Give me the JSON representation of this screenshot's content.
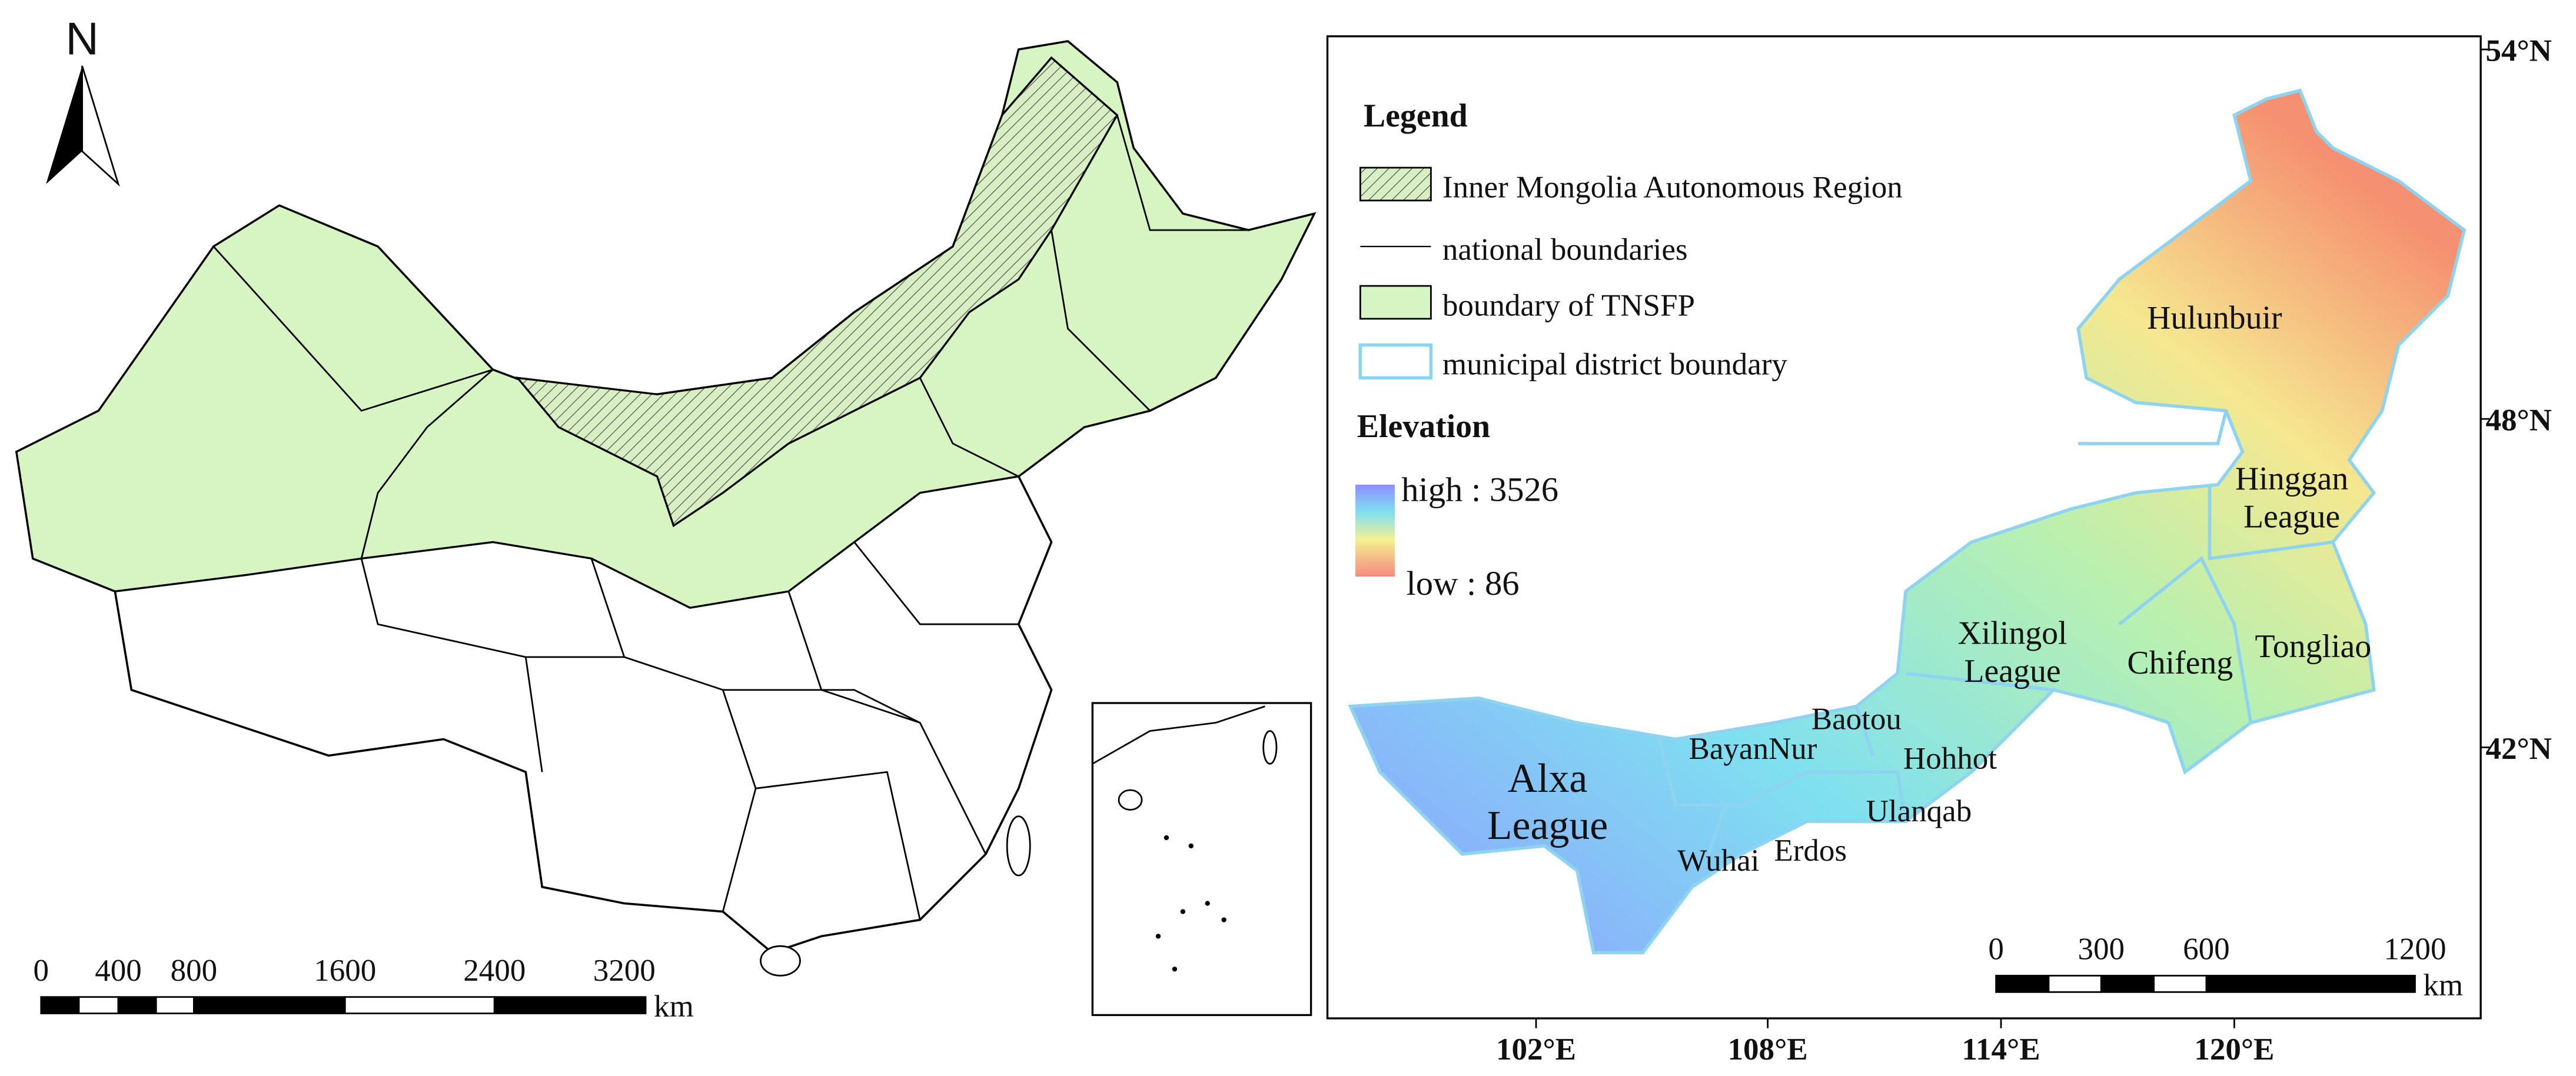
{
  "left_map": {
    "north_label": "N",
    "scale_bar": {
      "ticks": [
        "0",
        "400",
        "800",
        "1600",
        "2400",
        "3200"
      ],
      "unit": "km"
    }
  },
  "right_map": {
    "legend": {
      "title": "Legend",
      "items": [
        "Inner Mongolia Autonomous Region",
        "national boundaries",
        "boundary of TNSFP",
        "municipal district boundary"
      ],
      "elevation_title": "Elevation",
      "high": "high : 3526",
      "low": "low : 86"
    },
    "places": [
      {
        "lines": [
          "Hulunbuir"
        ]
      },
      {
        "lines": [
          "Hinggan",
          "League"
        ]
      },
      {
        "lines": [
          "Tongliao"
        ]
      },
      {
        "lines": [
          "Chifeng"
        ]
      },
      {
        "lines": [
          "Xilingol",
          "League"
        ]
      },
      {
        "lines": [
          "Baotou"
        ]
      },
      {
        "lines": [
          "BayanNur"
        ]
      },
      {
        "lines": [
          "Hohhot"
        ]
      },
      {
        "lines": [
          "Ulanqab"
        ]
      },
      {
        "lines": [
          "Alxa",
          "League"
        ]
      },
      {
        "lines": [
          "Wuhai"
        ]
      },
      {
        "lines": [
          "Erdos"
        ]
      }
    ],
    "lat_labels": [
      "54°N",
      "48°N",
      "42°N"
    ],
    "lon_labels": [
      "102°E",
      "108°E",
      "114°E",
      "120°E"
    ],
    "scale_bar": {
      "ticks": [
        "0",
        "300",
        "600",
        "1200"
      ],
      "unit": "km"
    }
  }
}
